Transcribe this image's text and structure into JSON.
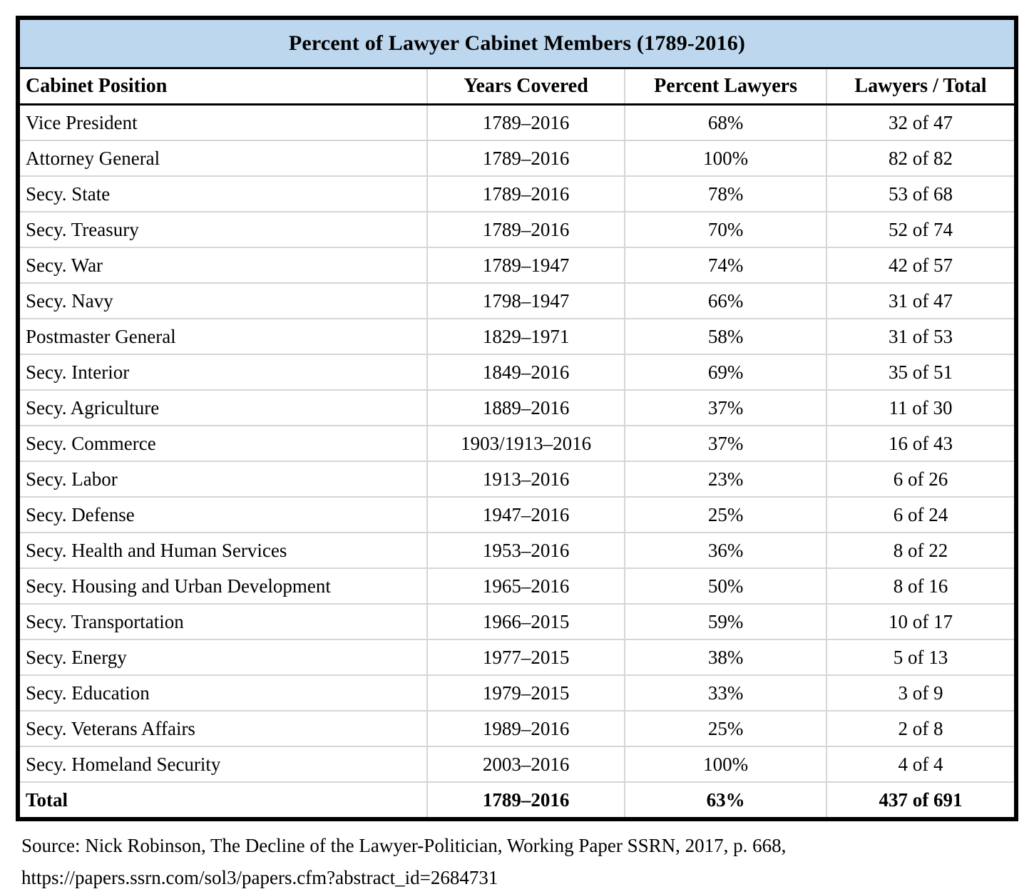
{
  "title": "Percent of Lawyer Cabinet Members (1789-2016)",
  "columns": [
    "Cabinet Position",
    "Years Covered",
    "Percent Lawyers",
    "Lawyers / Total"
  ],
  "rows": [
    {
      "position": "Vice President",
      "years": "1789–2016",
      "percent": "68%",
      "ratio": "32 of 47"
    },
    {
      "position": "Attorney General",
      "years": "1789–2016",
      "percent": "100%",
      "ratio": "82 of 82"
    },
    {
      "position": "Secy. State",
      "years": "1789–2016",
      "percent": "78%",
      "ratio": "53 of 68"
    },
    {
      "position": "Secy. Treasury",
      "years": "1789–2016",
      "percent": "70%",
      "ratio": "52 of 74"
    },
    {
      "position": "Secy. War",
      "years": "1789–1947",
      "percent": "74%",
      "ratio": "42 of 57"
    },
    {
      "position": "Secy. Navy",
      "years": "1798–1947",
      "percent": "66%",
      "ratio": "31 of 47"
    },
    {
      "position": "Postmaster General",
      "years": "1829–1971",
      "percent": "58%",
      "ratio": "31 of 53"
    },
    {
      "position": "Secy. Interior",
      "years": "1849–2016",
      "percent": "69%",
      "ratio": "35 of 51"
    },
    {
      "position": "Secy. Agriculture",
      "years": "1889–2016",
      "percent": "37%",
      "ratio": "11 of 30"
    },
    {
      "position": "Secy. Commerce",
      "years": "1903/1913–2016",
      "percent": "37%",
      "ratio": "16 of 43"
    },
    {
      "position": "Secy. Labor",
      "years": "1913–2016",
      "percent": "23%",
      "ratio": "6 of 26"
    },
    {
      "position": "Secy. Defense",
      "years": "1947–2016",
      "percent": "25%",
      "ratio": "6 of 24"
    },
    {
      "position": "Secy. Health and Human Services",
      "years": "1953–2016",
      "percent": "36%",
      "ratio": "8 of 22"
    },
    {
      "position": "Secy. Housing and Urban Development",
      "years": "1965–2016",
      "percent": "50%",
      "ratio": "8 of 16"
    },
    {
      "position": "Secy. Transportation",
      "years": "1966–2015",
      "percent": "59%",
      "ratio": "10 of 17"
    },
    {
      "position": "Secy. Energy",
      "years": "1977–2015",
      "percent": "38%",
      "ratio": "5 of 13"
    },
    {
      "position": "Secy. Education",
      "years": "1979–2015",
      "percent": "33%",
      "ratio": "3 of 9"
    },
    {
      "position": "Secy. Veterans Affairs",
      "years": "1989–2016",
      "percent": "25%",
      "ratio": "2 of 8"
    },
    {
      "position": "Secy. Homeland Security",
      "years": "2003–2016",
      "percent": "100%",
      "ratio": "4 of 4"
    }
  ],
  "total": {
    "position": "Total",
    "years": "1789–2016",
    "percent": "63%",
    "ratio": "437 of 691"
  },
  "source": {
    "line1": "Source: Nick Robinson, The Decline of the Lawyer-Politician, Working Paper SSRN, 2017, p. 668,",
    "line2": "https://papers.ssrn.com/sol3/papers.cfm?abstract_id=2684731"
  },
  "colors": {
    "title_bg": "#bdd7ee",
    "grid_line": "#d6d6d6",
    "outer_border": "#000000"
  }
}
